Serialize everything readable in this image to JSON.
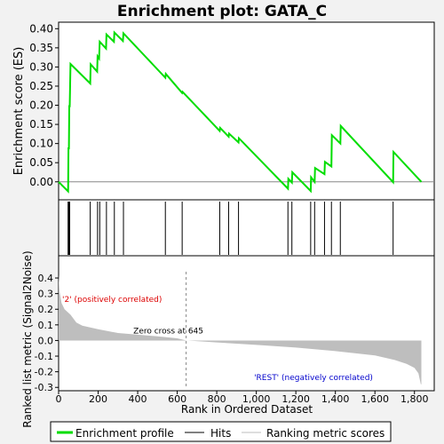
{
  "chart_data": {
    "type": "line",
    "title": "Enrichment plot: GATA_C",
    "xlabel": "Rank in Ordered Dataset",
    "es_panel": {
      "ylabel": "Enrichment score (ES)",
      "ylim": [
        -0.04,
        0.41
      ],
      "yticks": [
        0.0,
        0.05,
        0.1,
        0.15,
        0.2,
        0.25,
        0.3,
        0.35,
        0.4
      ],
      "ytick_labels": [
        "0.00",
        "0.05",
        "0.10",
        "0.15",
        "0.20",
        "0.25",
        "0.30",
        "0.35",
        "0.40"
      ],
      "series": [
        {
          "name": "Enrichment profile",
          "color": "#00dd00",
          "x": [
            0,
            48,
            50,
            52,
            54,
            56,
            60,
            160,
            162,
            195,
            197,
            205,
            208,
            240,
            242,
            280,
            282,
            325,
            328,
            540,
            542,
            625,
            627,
            815,
            817,
            860,
            862,
            910,
            912,
            1160,
            1162,
            1180,
            1182,
            1275,
            1277,
            1295,
            1297,
            1345,
            1347,
            1380,
            1382,
            1425,
            1427,
            1692,
            1694,
            1835
          ],
          "y": [
            0.0,
            -0.025,
            0.09,
            0.085,
            0.2,
            0.195,
            0.308,
            0.257,
            0.307,
            0.288,
            0.328,
            0.322,
            0.366,
            0.348,
            0.385,
            0.366,
            0.39,
            0.368,
            0.388,
            0.272,
            0.282,
            0.232,
            0.235,
            0.133,
            0.141,
            0.118,
            0.126,
            0.103,
            0.114,
            -0.018,
            0.008,
            -0.002,
            0.025,
            -0.024,
            0.012,
            0.0,
            0.036,
            0.02,
            0.052,
            0.04,
            0.122,
            0.1,
            0.146,
            -0.001,
            0.078,
            0.0
          ]
        }
      ]
    },
    "hits": [
      48,
      52,
      56,
      160,
      197,
      208,
      242,
      282,
      328,
      540,
      625,
      815,
      860,
      910,
      1160,
      1180,
      1275,
      1295,
      1345,
      1380,
      1425,
      1692
    ],
    "metric_panel": {
      "ylabel": "Ranked list metric (Signal2Noise)",
      "ylim": [
        -0.31,
        0.44
      ],
      "yticks": [
        -0.3,
        -0.2,
        -0.1,
        0.0,
        0.1,
        0.2,
        0.3,
        0.4
      ],
      "ytick_labels": [
        "-0.3",
        "-0.2",
        "-0.1",
        "0.0",
        "0.1",
        "0.2",
        "0.3",
        "0.4"
      ],
      "curve": [
        [
          0,
          0.42
        ],
        [
          5,
          0.31
        ],
        [
          15,
          0.24
        ],
        [
          30,
          0.2
        ],
        [
          60,
          0.165
        ],
        [
          90,
          0.115
        ],
        [
          120,
          0.095
        ],
        [
          200,
          0.072
        ],
        [
          300,
          0.048
        ],
        [
          400,
          0.037
        ],
        [
          500,
          0.027
        ],
        [
          600,
          0.014
        ],
        [
          645,
          0.0
        ],
        [
          800,
          -0.012
        ],
        [
          1000,
          -0.028
        ],
        [
          1200,
          -0.045
        ],
        [
          1400,
          -0.068
        ],
        [
          1600,
          -0.095
        ],
        [
          1700,
          -0.125
        ],
        [
          1760,
          -0.15
        ],
        [
          1800,
          -0.175
        ],
        [
          1820,
          -0.21
        ],
        [
          1832,
          -0.28
        ],
        [
          1835,
          -0.28
        ]
      ],
      "fill_color": "#bebebe",
      "zero_cross_rank": 645,
      "zero_cross_label": "Zero cross at 645",
      "pos_label": "'2' (positively correlated)",
      "neg_label": "'REST' (negatively correlated)",
      "pos_color": "#dd0000",
      "neg_color": "#0000cc"
    },
    "xlim": [
      0,
      1900
    ],
    "xticks": [
      0,
      200,
      400,
      600,
      800,
      1000,
      1200,
      1400,
      1600,
      1800
    ],
    "xtick_labels": [
      "0",
      "200",
      "400",
      "600",
      "800",
      "1,000",
      "1,200",
      "1,400",
      "1,600",
      "1,800"
    ],
    "colorbar": {
      "segments": [
        {
          "start": 0,
          "end": 30,
          "color": "#e8202a"
        },
        {
          "start": 30,
          "end": 150,
          "color": "#f05a5e"
        },
        {
          "start": 150,
          "end": 250,
          "color": "#f47a80"
        },
        {
          "start": 250,
          "end": 440,
          "color": "#f89aa2"
        },
        {
          "start": 440,
          "end": 640,
          "color": "#fbc3d8"
        },
        {
          "start": 640,
          "end": 900,
          "color": "#d8d8f8"
        },
        {
          "start": 900,
          "end": 1130,
          "color": "#c8c8f4"
        },
        {
          "start": 1130,
          "end": 1320,
          "color": "#9a9ae8"
        },
        {
          "start": 1320,
          "end": 1690,
          "color": "#5a5ae0"
        },
        {
          "start": 1690,
          "end": 1835,
          "color": "#2222cc"
        }
      ]
    },
    "legend": {
      "position": "bottom",
      "items": [
        {
          "label": "Enrichment profile",
          "color": "#00dd00"
        },
        {
          "label": "Hits",
          "color": "#000000"
        },
        {
          "label": "Ranking metric scores",
          "color": "#bebebe"
        }
      ]
    }
  }
}
